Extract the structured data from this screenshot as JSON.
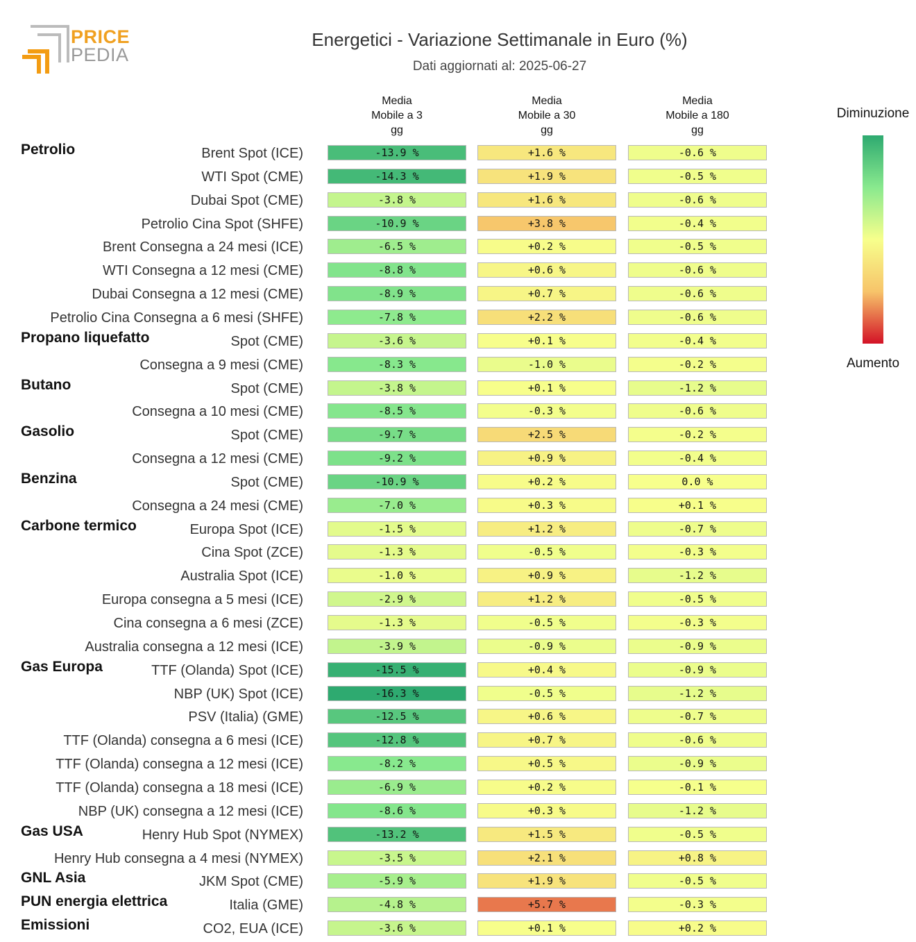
{
  "logo": {
    "line1": "PRICE",
    "line2": "PEDIA"
  },
  "title": "Energetici - Variazione Settimanale in Euro (%)",
  "subtitle": "Dati aggiornati al: 2025-06-27",
  "columns": [
    {
      "lines": [
        "Media",
        "Mobile a 3",
        "gg"
      ]
    },
    {
      "lines": [
        "Media",
        "Mobile a 30",
        "gg"
      ]
    },
    {
      "lines": [
        "Media",
        "Mobile a 180",
        "gg"
      ]
    }
  ],
  "legend": {
    "top": "Diminuzione",
    "bottom": "Aumento"
  },
  "colors": {
    "strong_decrease": "#2eaa70",
    "decrease": "#89e98e",
    "neutral": "#f7ff8c",
    "increase": "#f7c46a",
    "strong_increase": "#d31226"
  },
  "chart_data": {
    "type": "heatmap",
    "title": "Energetici - Variazione Settimanale in Euro (%)",
    "columns": [
      "Media Mobile a 3 gg",
      "Media Mobile a 30 gg",
      "Media Mobile a 180 gg"
    ],
    "color_scale": {
      "min": -16.3,
      "max": 5.7,
      "low_label": "Diminuzione",
      "high_label": "Aumento"
    },
    "rows": [
      {
        "group": "Petrolio",
        "label": "Brent Spot (ICE)",
        "values": [
          -13.9,
          1.6,
          -0.6
        ],
        "text": [
          "-13.9 %",
          "+1.6 %",
          "-0.6 %"
        ]
      },
      {
        "group": "",
        "label": "WTI Spot (CME)",
        "values": [
          -14.3,
          1.9,
          -0.5
        ],
        "text": [
          "-14.3 %",
          "+1.9 %",
          "-0.5 %"
        ]
      },
      {
        "group": "",
        "label": "Dubai Spot (CME)",
        "values": [
          -3.8,
          1.6,
          -0.6
        ],
        "text": [
          "-3.8 %",
          "+1.6 %",
          "-0.6 %"
        ]
      },
      {
        "group": "",
        "label": "Petrolio Cina Spot (SHFE)",
        "values": [
          -10.9,
          3.8,
          -0.4
        ],
        "text": [
          "-10.9 %",
          "+3.8 %",
          "-0.4 %"
        ]
      },
      {
        "group": "",
        "label": "Brent Consegna a 24 mesi (ICE)",
        "values": [
          -6.5,
          0.2,
          -0.5
        ],
        "text": [
          "-6.5 %",
          "+0.2 %",
          "-0.5 %"
        ]
      },
      {
        "group": "",
        "label": "WTI Consegna a 12 mesi (CME)",
        "values": [
          -8.8,
          0.6,
          -0.6
        ],
        "text": [
          "-8.8 %",
          "+0.6 %",
          "-0.6 %"
        ]
      },
      {
        "group": "",
        "label": "Dubai Consegna a 12 mesi (CME)",
        "values": [
          -8.9,
          0.7,
          -0.6
        ],
        "text": [
          "-8.9 %",
          "+0.7 %",
          "-0.6 %"
        ]
      },
      {
        "group": "",
        "label": "Petrolio Cina Consegna a 6 mesi (SHFE)",
        "values": [
          -7.8,
          2.2,
          -0.6
        ],
        "text": [
          "-7.8 %",
          "+2.2 %",
          "-0.6 %"
        ]
      },
      {
        "group": "Propano liquefatto",
        "label": "Spot (CME)",
        "values": [
          -3.6,
          0.1,
          -0.4
        ],
        "text": [
          "-3.6 %",
          "+0.1 %",
          "-0.4 %"
        ]
      },
      {
        "group": "",
        "label": "Consegna a 9 mesi (CME)",
        "values": [
          -8.3,
          -1.0,
          -0.2
        ],
        "text": [
          "-8.3 %",
          "-1.0 %",
          "-0.2 %"
        ]
      },
      {
        "group": "Butano",
        "label": "Spot (CME)",
        "values": [
          -3.8,
          0.1,
          -1.2
        ],
        "text": [
          "-3.8 %",
          "+0.1 %",
          "-1.2 %"
        ]
      },
      {
        "group": "",
        "label": "Consegna a 10 mesi (CME)",
        "values": [
          -8.5,
          -0.3,
          -0.6
        ],
        "text": [
          "-8.5 %",
          "-0.3 %",
          "-0.6 %"
        ]
      },
      {
        "group": "Gasolio",
        "label": "Spot (CME)",
        "values": [
          -9.7,
          2.5,
          -0.2
        ],
        "text": [
          "-9.7 %",
          "+2.5 %",
          "-0.2 %"
        ]
      },
      {
        "group": "",
        "label": "Consegna a 12 mesi (CME)",
        "values": [
          -9.2,
          0.9,
          -0.4
        ],
        "text": [
          "-9.2 %",
          "+0.9 %",
          "-0.4 %"
        ]
      },
      {
        "group": "Benzina",
        "label": "Spot (CME)",
        "values": [
          -10.9,
          0.2,
          0.0
        ],
        "text": [
          "-10.9 %",
          "+0.2 %",
          "0.0 %"
        ]
      },
      {
        "group": "",
        "label": "Consegna a 24 mesi (CME)",
        "values": [
          -7.0,
          0.3,
          0.1
        ],
        "text": [
          "-7.0 %",
          "+0.3 %",
          "+0.1 %"
        ]
      },
      {
        "group": "Carbone termico",
        "label": "Europa Spot (ICE)",
        "values": [
          -1.5,
          1.2,
          -0.7
        ],
        "text": [
          "-1.5 %",
          "+1.2 %",
          "-0.7 %"
        ]
      },
      {
        "group": "",
        "label": "Cina Spot (ZCE)",
        "values": [
          -1.3,
          -0.5,
          -0.3
        ],
        "text": [
          "-1.3 %",
          "-0.5 %",
          "-0.3 %"
        ]
      },
      {
        "group": "",
        "label": "Australia Spot (ICE)",
        "values": [
          -1.0,
          0.9,
          -1.2
        ],
        "text": [
          "-1.0 %",
          "+0.9 %",
          "-1.2 %"
        ]
      },
      {
        "group": "",
        "label": "Europa consegna a 5 mesi (ICE)",
        "values": [
          -2.9,
          1.2,
          -0.5
        ],
        "text": [
          "-2.9 %",
          "+1.2 %",
          "-0.5 %"
        ]
      },
      {
        "group": "",
        "label": "Cina consegna a 6 mesi (ZCE)",
        "values": [
          -1.3,
          -0.5,
          -0.3
        ],
        "text": [
          "-1.3 %",
          "-0.5 %",
          "-0.3 %"
        ]
      },
      {
        "group": "",
        "label": "Australia consegna a 12 mesi (ICE)",
        "values": [
          -3.9,
          -0.9,
          -0.9
        ],
        "text": [
          "-3.9 %",
          "-0.9 %",
          "-0.9 %"
        ]
      },
      {
        "group": "Gas Europa",
        "label": "TTF (Olanda) Spot (ICE)",
        "values": [
          -15.5,
          0.4,
          -0.9
        ],
        "text": [
          "-15.5 %",
          "+0.4 %",
          "-0.9 %"
        ]
      },
      {
        "group": "",
        "label": "NBP (UK) Spot (ICE)",
        "values": [
          -16.3,
          -0.5,
          -1.2
        ],
        "text": [
          "-16.3 %",
          "-0.5 %",
          "-1.2 %"
        ]
      },
      {
        "group": "",
        "label": "PSV (Italia) (GME)",
        "values": [
          -12.5,
          0.6,
          -0.7
        ],
        "text": [
          "-12.5 %",
          "+0.6 %",
          "-0.7 %"
        ]
      },
      {
        "group": "",
        "label": "TTF (Olanda) consegna a 6 mesi (ICE)",
        "values": [
          -12.8,
          0.7,
          -0.6
        ],
        "text": [
          "-12.8 %",
          "+0.7 %",
          "-0.6 %"
        ]
      },
      {
        "group": "",
        "label": "TTF (Olanda) consegna a 12 mesi (ICE)",
        "values": [
          -8.2,
          0.5,
          -0.9
        ],
        "text": [
          "-8.2 %",
          "+0.5 %",
          "-0.9 %"
        ]
      },
      {
        "group": "",
        "label": "TTF (Olanda) consegna a 18 mesi (ICE)",
        "values": [
          -6.9,
          0.2,
          -0.1
        ],
        "text": [
          "-6.9 %",
          "+0.2 %",
          "-0.1 %"
        ]
      },
      {
        "group": "",
        "label": "NBP (UK) consegna a 12 mesi (ICE)",
        "values": [
          -8.6,
          0.3,
          -1.2
        ],
        "text": [
          "-8.6 %",
          "+0.3 %",
          "-1.2 %"
        ]
      },
      {
        "group": "Gas USA",
        "label": "Henry Hub Spot (NYMEX)",
        "values": [
          -13.2,
          1.5,
          -0.5
        ],
        "text": [
          "-13.2 %",
          "+1.5 %",
          "-0.5 %"
        ]
      },
      {
        "group": "",
        "label": "Henry Hub consegna a 4 mesi (NYMEX)",
        "values": [
          -3.5,
          2.1,
          0.8
        ],
        "text": [
          "-3.5 %",
          "+2.1 %",
          "+0.8 %"
        ]
      },
      {
        "group": "GNL Asia",
        "label": "JKM Spot (CME)",
        "values": [
          -5.9,
          1.9,
          -0.5
        ],
        "text": [
          "-5.9 %",
          "+1.9 %",
          "-0.5 %"
        ]
      },
      {
        "group": "PUN energia elettrica",
        "label": "Italia (GME)",
        "values": [
          -4.8,
          5.7,
          -0.3
        ],
        "text": [
          "-4.8 %",
          "+5.7 %",
          "-0.3 %"
        ]
      },
      {
        "group": "Emissioni",
        "label": "CO2, EUA (ICE)",
        "values": [
          -3.6,
          0.1,
          0.2
        ],
        "text": [
          "-3.6 %",
          "+0.1 %",
          "+0.2 %"
        ]
      }
    ]
  }
}
